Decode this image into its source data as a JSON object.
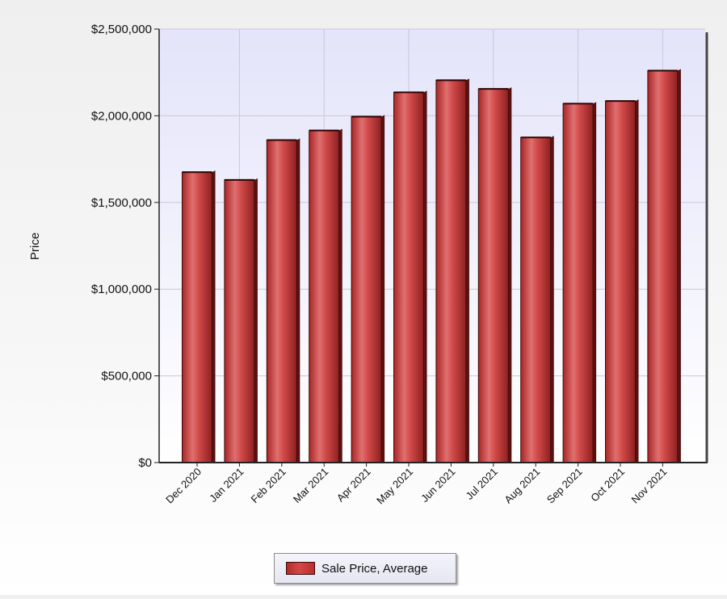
{
  "chart_data": {
    "type": "bar",
    "title": "",
    "xlabel": "",
    "ylabel": "Price",
    "categories": [
      "Dec 2020",
      "Jan 2021",
      "Feb 2021",
      "Mar 2021",
      "Apr 2021",
      "May 2021",
      "Jun 2021",
      "Jul 2021",
      "Aug 2021",
      "Sep 2021",
      "Oct 2021",
      "Nov 2021"
    ],
    "series": [
      {
        "name": "Sale Price, Average",
        "color": "#c73a3a",
        "values": [
          1675000,
          1630000,
          1860000,
          1915000,
          1995000,
          2135000,
          2205000,
          2155000,
          1875000,
          2070000,
          2085000,
          2260000
        ]
      }
    ],
    "ylim": [
      0,
      2500000
    ],
    "yticks": [
      0,
      500000,
      1000000,
      1500000,
      2000000,
      2500000
    ],
    "ytick_labels": [
      "$0",
      "$500,000",
      "$1,000,000",
      "$1,500,000",
      "$2,000,000",
      "$2,500,000"
    ],
    "grid": true,
    "legend_position": "bottom-center",
    "colors": {
      "plot_bg_top": "#e4e4fa",
      "plot_bg_bottom": "#ffffff",
      "grid": "#c8c8d8",
      "bar": "#c73a3a"
    }
  }
}
